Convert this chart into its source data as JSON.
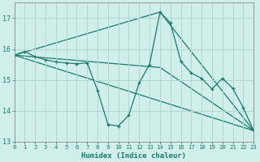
{
  "xlabel": "Humidex (Indice chaleur)",
  "xlim": [
    0,
    23
  ],
  "ylim": [
    13,
    17.5
  ],
  "yticks": [
    13,
    14,
    15,
    16,
    17
  ],
  "xticks": [
    0,
    1,
    2,
    3,
    4,
    5,
    6,
    7,
    8,
    9,
    10,
    11,
    12,
    13,
    14,
    15,
    16,
    17,
    18,
    19,
    20,
    21,
    22,
    23
  ],
  "bg_color": "#d0eeea",
  "grid_color": "#b0d8d0",
  "line_color": "#1a7a6a",
  "main_line": {
    "x": [
      0,
      1,
      2,
      3,
      4,
      5,
      6,
      7,
      8,
      9,
      10,
      11,
      12,
      13,
      14,
      15,
      16,
      17,
      18,
      19,
      20,
      21,
      22,
      23
    ],
    "y": [
      15.8,
      15.92,
      15.75,
      15.65,
      15.58,
      15.55,
      15.52,
      15.55,
      14.65,
      13.55,
      13.5,
      13.85,
      14.9,
      15.5,
      17.2,
      16.85,
      15.6,
      15.22,
      15.05,
      14.7,
      15.05,
      14.72,
      14.1,
      13.35
    ]
  },
  "straight_lines": [
    {
      "x": [
        0,
        23
      ],
      "y": [
        15.8,
        13.35
      ]
    },
    {
      "x": [
        0,
        14,
        23
      ],
      "y": [
        15.8,
        17.2,
        13.35
      ]
    },
    {
      "x": [
        0,
        14,
        23
      ],
      "y": [
        15.8,
        15.4,
        13.35
      ]
    }
  ]
}
